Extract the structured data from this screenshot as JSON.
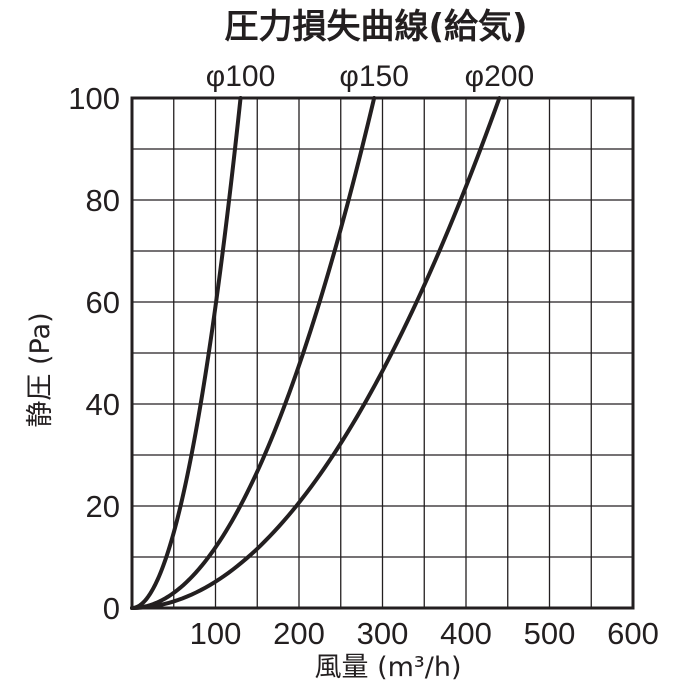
{
  "chart_data": {
    "type": "line",
    "title": "圧力損失曲線(給気)",
    "xlabel": "風量 (m³/h)",
    "ylabel": "静圧 (Pa)",
    "xlim": [
      0,
      600
    ],
    "ylim": [
      0,
      100
    ],
    "x_ticks": [
      "100",
      "200",
      "300",
      "400",
      "500",
      "600"
    ],
    "y_ticks": [
      "0",
      "20",
      "40",
      "60",
      "80",
      "100"
    ],
    "grid": true,
    "series": [
      {
        "name": "φ100",
        "x": [
          0,
          25,
          50,
          75,
          90,
          100,
          110,
          120,
          130
        ],
        "y": [
          0,
          3.7,
          14.8,
          33,
          48,
          59,
          72,
          86,
          100
        ]
      },
      {
        "name": "φ150",
        "x": [
          0,
          50,
          100,
          150,
          200,
          225,
          250,
          275,
          290
        ],
        "y": [
          0,
          3,
          12,
          27,
          48,
          60,
          74,
          89,
          100
        ]
      },
      {
        "name": "φ200",
        "x": [
          0,
          50,
          100,
          150,
          200,
          250,
          300,
          350,
          400,
          440
        ],
        "y": [
          0,
          1.3,
          5.2,
          11.6,
          20.7,
          32.3,
          46.5,
          63.3,
          82.6,
          100
        ]
      }
    ]
  }
}
